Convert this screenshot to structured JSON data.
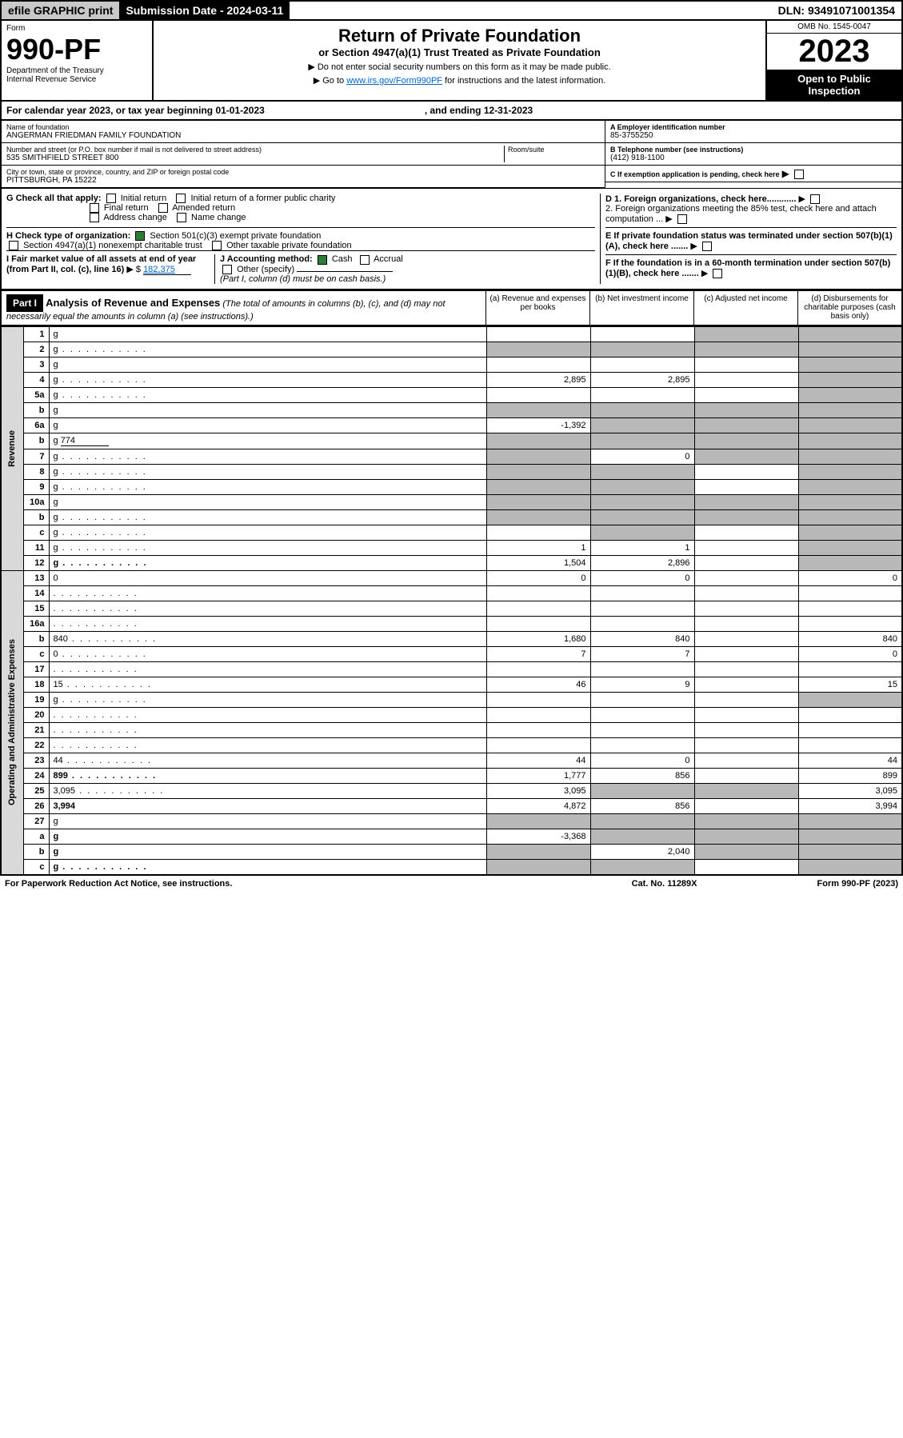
{
  "topbar": {
    "efile": "efile GRAPHIC print",
    "sub_lbl": "Submission Date - ",
    "sub_val": "2024-03-11",
    "dln": "DLN: 93491071001354"
  },
  "header": {
    "form_word": "Form",
    "form_no": "990-PF",
    "dept": "Department of the Treasury",
    "irs": "Internal Revenue Service",
    "title": "Return of Private Foundation",
    "subtitle": "or Section 4947(a)(1) Trust Treated as Private Foundation",
    "note1": "▶ Do not enter social security numbers on this form as it may be made public.",
    "note2": "▶ Go to www.irs.gov/Form990PF for instructions and the latest information.",
    "url": "www.irs.gov/Form990PF",
    "omb": "OMB No. 1545-0047",
    "year": "2023",
    "open": "Open to Public Inspection"
  },
  "cal": {
    "begin": "For calendar year 2023, or tax year beginning 01-01-2023",
    "end": ", and ending 12-31-2023"
  },
  "org": {
    "name_lbl": "Name of foundation",
    "name": "ANGERMAN FRIEDMAN FAMILY FOUNDATION",
    "addr_lbl": "Number and street (or P.O. box number if mail is not delivered to street address)",
    "addr": "535 SMITHFIELD STREET 800",
    "room_lbl": "Room/suite",
    "city_lbl": "City or town, state or province, country, and ZIP or foreign postal code",
    "city": "PITTSBURGH, PA  15222",
    "ein_lbl": "A Employer identification number",
    "ein": "85-3755250",
    "tel_lbl": "B Telephone number (see instructions)",
    "tel": "(412) 918-1100",
    "c": "C If exemption application is pending, check here",
    "d1": "D 1. Foreign organizations, check here............",
    "d2": "2. Foreign organizations meeting the 85% test, check here and attach computation ...",
    "e": "E If private foundation status was terminated under section 507(b)(1)(A), check here .......",
    "f": "F If the foundation is in a 60-month termination under section 507(b)(1)(B), check here .......",
    "g": "G Check all that apply:",
    "g_opts": [
      "Initial return",
      "Initial return of a former public charity",
      "Final return",
      "Amended return",
      "Address change",
      "Name change"
    ],
    "h": "H Check type of organization:",
    "h1": "Section 501(c)(3) exempt private foundation",
    "h2": "Section 4947(a)(1) nonexempt charitable trust",
    "h3": "Other taxable private foundation",
    "i": "I Fair market value of all assets at end of year (from Part II, col. (c), line 16)",
    "i_val": "182,375",
    "j": "J Accounting method:",
    "j_cash": "Cash",
    "j_acc": "Accrual",
    "j_other": "Other (specify)",
    "j_note": "(Part I, column (d) must be on cash basis.)"
  },
  "part1": {
    "hdr": "Part I",
    "title": "Analysis of Revenue and Expenses",
    "title_note": "(The total of amounts in columns (b), (c), and (d) may not necessarily equal the amounts in column (a) (see instructions).)",
    "col_a": "(a) Revenue and expenses per books",
    "col_b": "(b) Net investment income",
    "col_c": "(c) Adjusted net income",
    "col_d": "(d) Disbursements for charitable purposes (cash basis only)",
    "rot_rev": "Revenue",
    "rot_exp": "Operating and Administrative Expenses"
  },
  "rows": [
    {
      "n": "1",
      "d": "g",
      "a": "",
      "b": "",
      "c": "g"
    },
    {
      "n": "2",
      "d": "g",
      "dots": true,
      "a": "g",
      "b": "g",
      "c": "g"
    },
    {
      "n": "3",
      "d": "g",
      "a": "",
      "b": "",
      "c": ""
    },
    {
      "n": "4",
      "d": "g",
      "dots": true,
      "a": "2,895",
      "b": "2,895",
      "c": ""
    },
    {
      "n": "5a",
      "d": "g",
      "dots": true,
      "a": "",
      "b": "",
      "c": ""
    },
    {
      "n": "b",
      "d": "g",
      "a": "g",
      "b": "g",
      "c": "g"
    },
    {
      "n": "6a",
      "d": "g",
      "a": "-1,392",
      "b": "g",
      "c": "g"
    },
    {
      "n": "b",
      "d": "g",
      "v": "774",
      "a": "g",
      "b": "g",
      "c": "g"
    },
    {
      "n": "7",
      "d": "g",
      "dots": true,
      "a": "g",
      "b": "0",
      "c": "g"
    },
    {
      "n": "8",
      "d": "g",
      "dots": true,
      "a": "g",
      "b": "g",
      "c": ""
    },
    {
      "n": "9",
      "d": "g",
      "dots": true,
      "a": "g",
      "b": "g",
      "c": ""
    },
    {
      "n": "10a",
      "d": "g",
      "a": "g",
      "b": "g",
      "c": "g"
    },
    {
      "n": "b",
      "d": "g",
      "dots": true,
      "a": "g",
      "b": "g",
      "c": "g"
    },
    {
      "n": "c",
      "d": "g",
      "dots": true,
      "a": "",
      "b": "g",
      "c": ""
    },
    {
      "n": "11",
      "d": "g",
      "dots": true,
      "a": "1",
      "b": "1",
      "c": ""
    },
    {
      "n": "12",
      "d": "g",
      "dots": true,
      "bold": true,
      "a": "1,504",
      "b": "2,896",
      "c": ""
    },
    {
      "n": "13",
      "d": "0",
      "a": "0",
      "b": "0",
      "c": ""
    },
    {
      "n": "14",
      "d": "",
      "dots": true,
      "a": "",
      "b": "",
      "c": ""
    },
    {
      "n": "15",
      "d": "",
      "dots": true,
      "a": "",
      "b": "",
      "c": ""
    },
    {
      "n": "16a",
      "d": "",
      "dots": true,
      "a": "",
      "b": "",
      "c": ""
    },
    {
      "n": "b",
      "d": "840",
      "dots": true,
      "a": "1,680",
      "b": "840",
      "c": ""
    },
    {
      "n": "c",
      "d": "0",
      "dots": true,
      "a": "7",
      "b": "7",
      "c": ""
    },
    {
      "n": "17",
      "d": "",
      "dots": true,
      "a": "",
      "b": "",
      "c": ""
    },
    {
      "n": "18",
      "d": "15",
      "dots": true,
      "a": "46",
      "b": "9",
      "c": ""
    },
    {
      "n": "19",
      "d": "g",
      "dots": true,
      "a": "",
      "b": "",
      "c": ""
    },
    {
      "n": "20",
      "d": "",
      "dots": true,
      "a": "",
      "b": "",
      "c": ""
    },
    {
      "n": "21",
      "d": "",
      "dots": true,
      "a": "",
      "b": "",
      "c": ""
    },
    {
      "n": "22",
      "d": "",
      "dots": true,
      "a": "",
      "b": "",
      "c": ""
    },
    {
      "n": "23",
      "d": "44",
      "dots": true,
      "a": "44",
      "b": "0",
      "c": ""
    },
    {
      "n": "24",
      "d": "899",
      "dots": true,
      "bold": true,
      "a": "1,777",
      "b": "856",
      "c": ""
    },
    {
      "n": "25",
      "d": "3,095",
      "dots": true,
      "a": "3,095",
      "b": "g",
      "c": "g"
    },
    {
      "n": "26",
      "d": "3,994",
      "bold": true,
      "a": "4,872",
      "b": "856",
      "c": ""
    },
    {
      "n": "27",
      "d": "g",
      "a": "g",
      "b": "g",
      "c": "g"
    },
    {
      "n": "a",
      "d": "g",
      "bold": true,
      "a": "-3,368",
      "b": "g",
      "c": "g"
    },
    {
      "n": "b",
      "d": "g",
      "bold": true,
      "a": "g",
      "b": "2,040",
      "c": "g"
    },
    {
      "n": "c",
      "d": "g",
      "dots": true,
      "bold": true,
      "a": "g",
      "b": "g",
      "c": ""
    }
  ],
  "foot": {
    "pra": "For Paperwork Reduction Act Notice, see instructions.",
    "cat": "Cat. No. 11289X",
    "form": "Form 990-PF (2023)"
  },
  "colors": {
    "grey": "#b8b8b8",
    "ltgrey": "#d9d9d9",
    "green": "#2e7d32",
    "blue": "#0066cc"
  }
}
